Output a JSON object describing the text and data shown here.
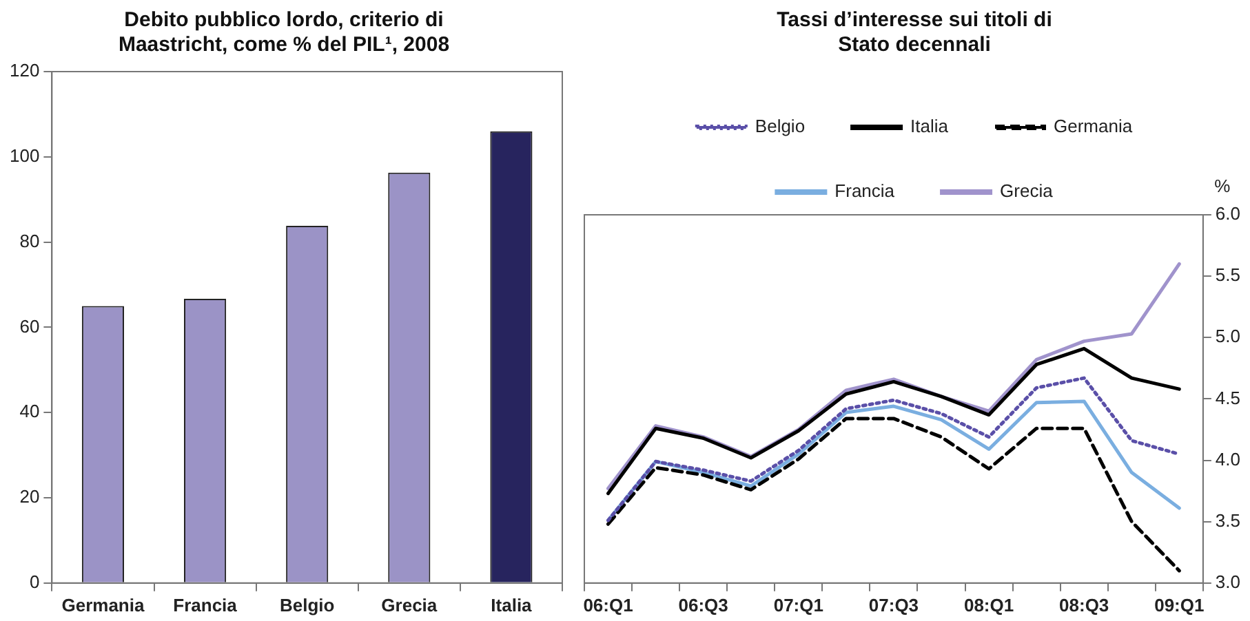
{
  "chart_data": [
    {
      "type": "bar",
      "title": "Debito pubblico lordo, criterio di Maastricht, come % del PIL¹, 2008",
      "categories": [
        "Germania",
        "Francia",
        "Belgio",
        "Grecia",
        "Italia"
      ],
      "values": [
        65,
        66.7,
        83.8,
        96.3,
        106
      ],
      "colors": [
        "#9b93c6",
        "#9b93c6",
        "#9b93c6",
        "#9b93c6",
        "#27245e"
      ],
      "ylim": [
        0,
        120
      ],
      "yticks": [
        0,
        20,
        40,
        60,
        80,
        100,
        120
      ],
      "grid": false
    },
    {
      "type": "line",
      "title": "Tassi d’interesse sui titoli di Stato decennali",
      "ylabel": "%",
      "categories": [
        "06:Q1",
        null,
        "06:Q3",
        null,
        "07:Q1",
        null,
        "07:Q3",
        null,
        "08:Q1",
        null,
        "08:Q3",
        null,
        "09:Q1"
      ],
      "series": [
        {
          "name": "Belgio",
          "color": "#5a4fa8",
          "line_style": "dotted",
          "values": [
            3.51,
            3.99,
            3.92,
            3.83,
            4.08,
            4.42,
            4.49,
            4.38,
            4.19,
            4.59,
            4.67,
            4.16,
            4.05
          ]
        },
        {
          "name": "Italia",
          "color": "#000000",
          "line_style": "solid",
          "values": [
            3.73,
            4.26,
            4.18,
            4.02,
            4.24,
            4.54,
            4.64,
            4.52,
            4.37,
            4.78,
            4.91,
            4.67,
            4.58
          ]
        },
        {
          "name": "Germania",
          "color": "#000000",
          "line_style": "dashed",
          "values": [
            3.48,
            3.94,
            3.88,
            3.76,
            4.01,
            4.34,
            4.34,
            4.19,
            3.93,
            4.26,
            4.26,
            3.5,
            3.1
          ]
        },
        {
          "name": "Francia",
          "color": "#7aaee0",
          "line_style": "solid",
          "values": [
            3.51,
            3.99,
            3.9,
            3.79,
            4.05,
            4.39,
            4.44,
            4.33,
            4.09,
            4.47,
            4.48,
            3.9,
            3.61
          ]
        },
        {
          "name": "Grecia",
          "color": "#a093cc",
          "line_style": "solid",
          "values": [
            3.77,
            4.28,
            4.19,
            4.03,
            4.25,
            4.57,
            4.66,
            4.52,
            4.4,
            4.82,
            4.97,
            5.03,
            5.6
          ]
        }
      ],
      "ylim": [
        3,
        6
      ],
      "yticks": [
        {
          "value": 3,
          "label": "3.0"
        },
        {
          "value": 3.5,
          "label": "3.5"
        },
        {
          "value": 4,
          "label": "4.0"
        },
        {
          "value": 4.5,
          "label": "4.5"
        },
        {
          "value": 5,
          "label": "5.0"
        },
        {
          "value": 5.5,
          "label": "5.5"
        },
        {
          "value": 6,
          "label": "6.0"
        }
      ],
      "grid": false,
      "legend": "top",
      "marker": "none"
    }
  ]
}
